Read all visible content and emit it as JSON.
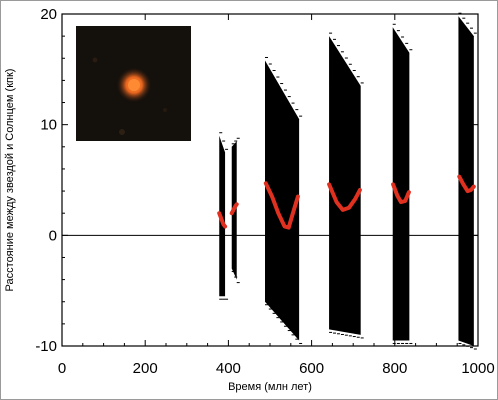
{
  "chart_data": {
    "type": "line",
    "title": "",
    "xlabel": "Время (млн лет)",
    "ylabel": "Расстояние между звездой и Солнцем (кпк)",
    "xlim": [
      0,
      1000
    ],
    "ylim": [
      -10,
      20
    ],
    "x_ticks": [
      "0",
      "200",
      "400",
      "600",
      "800",
      "1000"
    ],
    "y_ticks": [
      "-10",
      "0",
      "10",
      "20"
    ],
    "x_tick_values": [
      0,
      200,
      400,
      600,
      800,
      1000
    ],
    "y_tick_values": [
      -10,
      0,
      10,
      20
    ],
    "reference_line_y": 0,
    "grid": false,
    "colors": {
      "band": "#000000",
      "best_fit": "#e03020",
      "axis": "#000000",
      "inset_star": "#e8641e",
      "inset_bg": "#14100c"
    },
    "uncertainty_bands": [
      {
        "x_start": 378,
        "x_end": 392,
        "low_start": -5.5,
        "low_end": -5.5,
        "high_start": 9.0,
        "high_end": 7.5
      },
      {
        "x_start": 408,
        "x_end": 420,
        "low_start": -3.0,
        "low_end": -4.0,
        "high_start": 8.0,
        "high_end": 8.5
      },
      {
        "x_start": 488,
        "x_end": 570,
        "low_start": -6.0,
        "low_end": -9.5,
        "high_start": 15.8,
        "high_end": 10.5
      },
      {
        "x_start": 642,
        "x_end": 718,
        "low_start": -8.5,
        "low_end": -9.0,
        "high_start": 18.0,
        "high_end": 13.5
      },
      {
        "x_start": 795,
        "x_end": 835,
        "low_start": -9.5,
        "low_end": -9.5,
        "high_start": 18.8,
        "high_end": 16.5
      },
      {
        "x_start": 953,
        "x_end": 990,
        "low_start": -9.5,
        "low_end": -10.0,
        "high_start": 19.8,
        "high_end": 18.0
      }
    ],
    "best_fit_segments": [
      {
        "x": [
          378,
          383,
          388,
          392
        ],
        "y": [
          2.0,
          1.5,
          1.0,
          0.8
        ]
      },
      {
        "x": [
          408,
          412,
          416,
          420
        ],
        "y": [
          2.0,
          2.3,
          2.6,
          2.8
        ]
      },
      {
        "x": [
          490,
          505,
          520,
          535,
          545,
          555,
          567
        ],
        "y": [
          4.7,
          3.5,
          2.0,
          0.8,
          0.7,
          2.0,
          3.5
        ]
      },
      {
        "x": [
          642,
          660,
          675,
          690,
          705,
          716
        ],
        "y": [
          4.6,
          3.0,
          2.3,
          2.5,
          3.3,
          4.1
        ]
      },
      {
        "x": [
          796,
          806,
          815,
          825,
          834
        ],
        "y": [
          4.6,
          3.6,
          3.0,
          3.1,
          3.9
        ]
      },
      {
        "x": [
          955,
          965,
          975,
          983,
          990
        ],
        "y": [
          5.3,
          4.6,
          4.0,
          4.1,
          4.4
        ]
      }
    ]
  }
}
